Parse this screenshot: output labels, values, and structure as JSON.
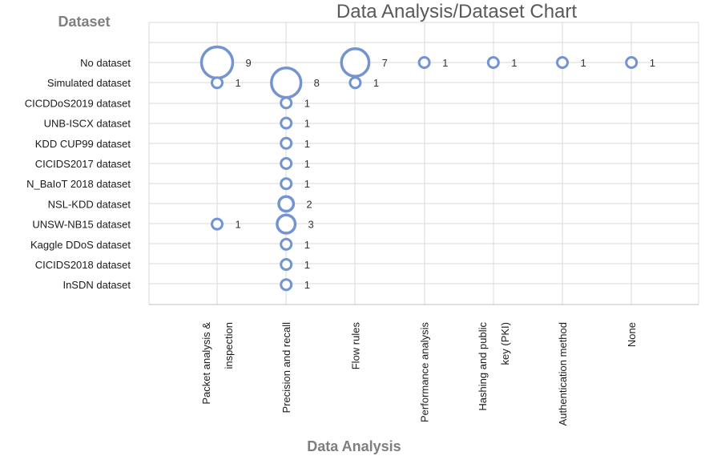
{
  "chart_data": {
    "type": "bubble",
    "title": "Data Analysis/Dataset Chart",
    "xlabel": "Data Analysis",
    "ylabel": "Dataset",
    "x_categories": [
      [
        "Packet analysis &",
        "inspection"
      ],
      [
        "Precision and recall"
      ],
      [
        "Flow rules"
      ],
      [
        "Performance analysis"
      ],
      [
        "Hashing and public",
        "key (PKI)"
      ],
      [
        "Authentication method"
      ],
      [
        "None"
      ]
    ],
    "y_categories": [
      "No dataset",
      "Simulated dataset",
      "CICDDoS2019 dataset",
      "UNB-ISCX dataset",
      "KDD CUP99 dataset",
      "CICIDS2017 dataset",
      "N_BaIoT 2018 dataset",
      "NSL-KDD dataset",
      "UNSW-NB15 dataset",
      "Kaggle DDoS dataset",
      "CICIDS2018 dataset",
      "InSDN dataset"
    ],
    "points": [
      {
        "x": 0,
        "y": 0,
        "value": 9
      },
      {
        "x": 2,
        "y": 0,
        "value": 7
      },
      {
        "x": 3,
        "y": 0,
        "value": 1
      },
      {
        "x": 4,
        "y": 0,
        "value": 1
      },
      {
        "x": 5,
        "y": 0,
        "value": 1
      },
      {
        "x": 6,
        "y": 0,
        "value": 1
      },
      {
        "x": 0,
        "y": 1,
        "value": 1
      },
      {
        "x": 1,
        "y": 1,
        "value": 8
      },
      {
        "x": 2,
        "y": 1,
        "value": 1
      },
      {
        "x": 1,
        "y": 2,
        "value": 1
      },
      {
        "x": 1,
        "y": 3,
        "value": 1
      },
      {
        "x": 1,
        "y": 4,
        "value": 1
      },
      {
        "x": 1,
        "y": 5,
        "value": 1
      },
      {
        "x": 1,
        "y": 6,
        "value": 1
      },
      {
        "x": 1,
        "y": 7,
        "value": 2
      },
      {
        "x": 0,
        "y": 8,
        "value": 1
      },
      {
        "x": 1,
        "y": 8,
        "value": 3
      },
      {
        "x": 1,
        "y": 9,
        "value": 1
      },
      {
        "x": 1,
        "y": 10,
        "value": 1
      },
      {
        "x": 1,
        "y": 11,
        "value": 1
      }
    ],
    "grid": true,
    "legend": "none",
    "colors": {
      "bubble_stroke": "#7394d0",
      "grid": "#d9d9d9"
    }
  }
}
